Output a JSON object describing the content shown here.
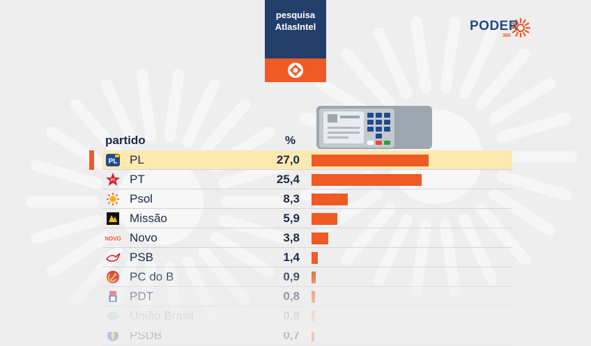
{
  "poll": {
    "line1": "pesquisa",
    "line2": "AtlasIntel"
  },
  "brand": {
    "name": "PODER",
    "number": "360",
    "accent": "#f05a24",
    "navy": "#233e6a"
  },
  "chart_data": {
    "type": "bar",
    "orientation": "horizontal",
    "column_headers": {
      "category": "partido",
      "value": "%"
    },
    "categories": [
      "PL",
      "PT",
      "Psol",
      "Missão",
      "Novo",
      "PSB",
      "PC do B",
      "PDT",
      "União Brasil",
      "PSDB"
    ],
    "values": [
      27.0,
      25.4,
      8.3,
      5.9,
      3.8,
      1.4,
      0.9,
      0.8,
      0.8,
      0.7
    ],
    "labels": [
      "27,0",
      "25,4",
      "8,3",
      "5,9",
      "3,8",
      "1,4",
      "0,9",
      "0,8",
      "0,8",
      "0,7"
    ],
    "icons": [
      "pl-logo-icon",
      "pt-star-icon",
      "psol-sun-icon",
      "missao-logo-icon",
      "novo-logo-icon",
      "psb-dove-icon",
      "pcdob-hammer-sickle-icon",
      "pdt-logo-icon",
      "uniao-brasil-logo-icon",
      "psdb-logo-icon"
    ],
    "highlighted": "PL",
    "bar_color": "#f05a24",
    "highlight_color": "#fbe9b0"
  }
}
